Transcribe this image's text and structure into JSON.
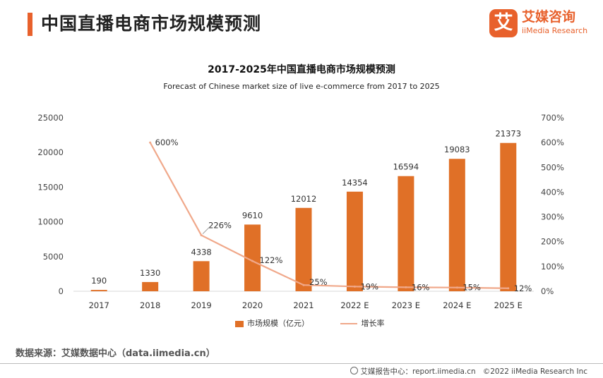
{
  "header": {
    "title": "中国直播电商市场规模预测",
    "brand_logo_char": "艾",
    "brand_cn": "艾媒咨询",
    "brand_en": "iiMedia Research"
  },
  "chart_data": {
    "type": "bar+line",
    "title": "2017-2025年中国直播电商市场规模预测",
    "subtitle": "Forecast of Chinese market size of live e-commerce from 2017 to 2025",
    "categories": [
      "2017",
      "2018",
      "2019",
      "2020",
      "2021",
      "2022 E",
      "2023 E",
      "2024 E",
      "2025 E"
    ],
    "series": [
      {
        "name": "市场规模（亿元）",
        "type": "bar",
        "axis": "left",
        "values": [
          190,
          1330,
          4338,
          9610,
          12012,
          14354,
          16594,
          19083,
          21373
        ],
        "labels": [
          "190",
          "1330",
          "4338",
          "9610",
          "12012",
          "14354",
          "16594",
          "19083",
          "21373"
        ]
      },
      {
        "name": "增长率",
        "type": "line",
        "axis": "right",
        "values": [
          null,
          600,
          226,
          122,
          25,
          19,
          16,
          15,
          12
        ],
        "labels": [
          "",
          "600%",
          "226%",
          "122%",
          "25%",
          "19%",
          "16%",
          "15%",
          "12%"
        ]
      }
    ],
    "y_left": {
      "min": 0,
      "max": 25000,
      "ticks": [
        "0",
        "5000",
        "10000",
        "15000",
        "20000",
        "25000"
      ]
    },
    "y_right": {
      "min": 0,
      "max": 700,
      "ticks": [
        "0%",
        "100%",
        "200%",
        "300%",
        "400%",
        "500%",
        "600%",
        "700%"
      ]
    },
    "legend_position": "bottom-center"
  },
  "legend": {
    "bar_label": "市场规模（亿元）",
    "line_label": "增长率"
  },
  "source": "数据来源：艾媒数据中心（data.iimedia.cn）",
  "footer": {
    "report_center": "艾媒报告中心：report.iimedia.cn",
    "copyright": "©2022  iiMedia Research  Inc"
  },
  "colors": {
    "accent": "#e8612c",
    "bar": "#e07027",
    "line": "#f0a88a",
    "text": "#333333"
  }
}
